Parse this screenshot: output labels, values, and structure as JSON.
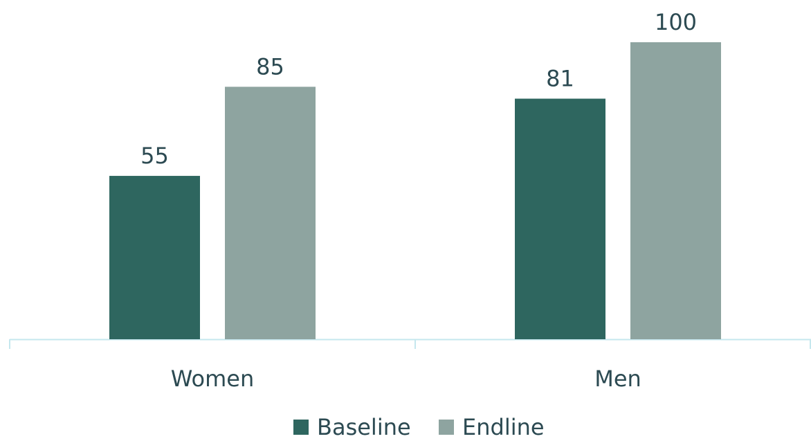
{
  "chart_data": {
    "type": "bar",
    "categories": [
      "Women",
      "Men"
    ],
    "series": [
      {
        "name": "Baseline",
        "values": [
          55,
          81
        ],
        "color": "#2e665f"
      },
      {
        "name": "Endline",
        "values": [
          85,
          100
        ],
        "color": "#8ea4a0"
      }
    ],
    "title": "",
    "xlabel": "",
    "ylabel": "",
    "ylim": [
      0,
      100
    ],
    "grid": false,
    "legend": "bottom-center",
    "axis_color": "#c5e7ee",
    "text_color": "#2c4a52"
  }
}
